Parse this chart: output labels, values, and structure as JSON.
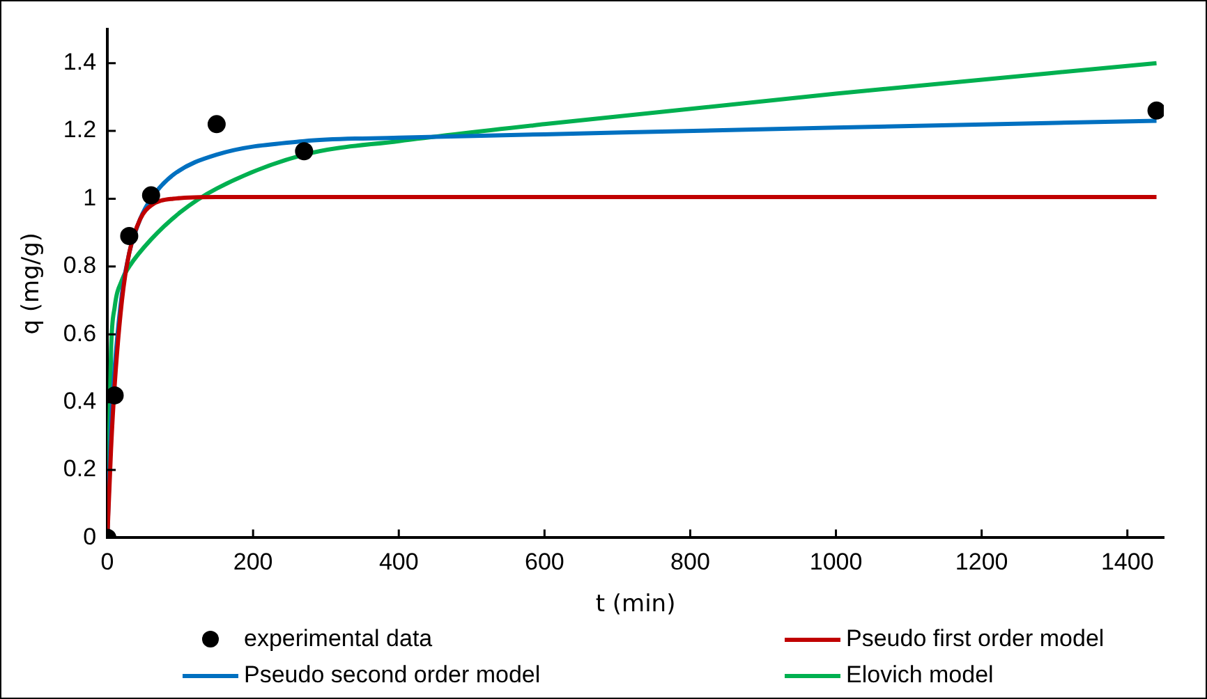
{
  "chart_data": {
    "type": "line",
    "xlabel": "t (min)",
    "ylabel": "q (mg/g)",
    "xlim": [
      0,
      1450
    ],
    "xticks": [
      0,
      200,
      400,
      600,
      800,
      1000,
      1200,
      1400
    ],
    "ylim": [
      0,
      1.5
    ],
    "yticks": [
      0,
      0.2,
      0.4,
      0.6,
      0.8,
      1,
      1.2,
      1.4
    ],
    "grid": false,
    "legend": "bottom",
    "series": [
      {
        "name": "experimental data",
        "type": "scatter",
        "marker": "circle",
        "color": "#000000",
        "x": [
          0,
          10,
          30,
          60,
          150,
          270,
          1440
        ],
        "values": [
          0,
          0.42,
          0.89,
          1.01,
          1.22,
          1.14,
          1.26
        ]
      },
      {
        "name": "Pseudo first order model",
        "color": "#c00000",
        "x": [
          0,
          5,
          10,
          20,
          30,
          45,
          60,
          90,
          150,
          200,
          1440
        ],
        "values": [
          0,
          0.26,
          0.45,
          0.7,
          0.84,
          0.94,
          0.98,
          1.0,
          1.005,
          1.005,
          1.005
        ]
      },
      {
        "name": "Pseudo second order model",
        "color": "#0070c0",
        "x": [
          0,
          5,
          10,
          20,
          30,
          45,
          60,
          90,
          150,
          270,
          400,
          600,
          1000,
          1440
        ],
        "values": [
          0,
          0.33,
          0.5,
          0.72,
          0.84,
          0.94,
          1.0,
          1.07,
          1.13,
          1.17,
          1.18,
          1.19,
          1.21,
          1.23
        ]
      },
      {
        "name": "Elovich model",
        "color": "#00b050",
        "x": [
          0,
          5,
          10,
          20,
          30,
          60,
          100,
          150,
          270,
          400,
          600,
          1000,
          1440
        ],
        "values": [
          0,
          0.55,
          0.68,
          0.76,
          0.8,
          0.88,
          0.96,
          1.03,
          1.13,
          1.17,
          1.22,
          1.31,
          1.4
        ]
      }
    ]
  }
}
